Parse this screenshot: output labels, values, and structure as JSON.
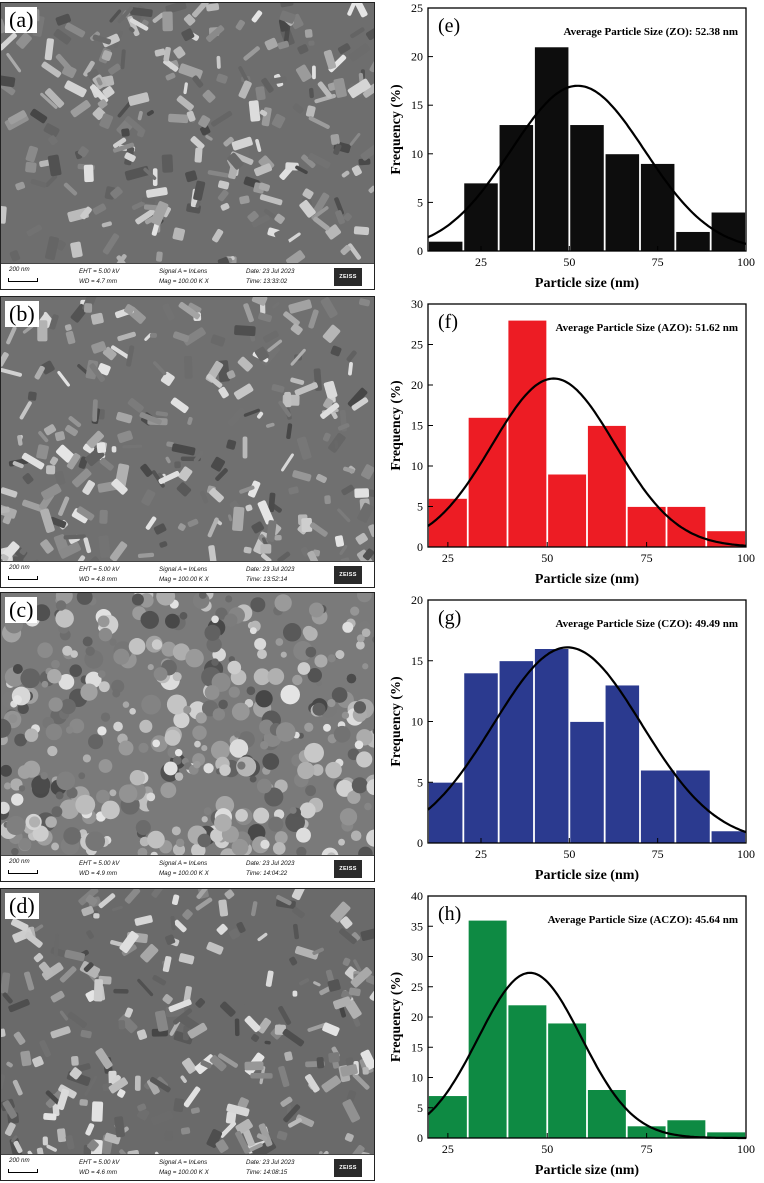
{
  "panels": [
    {
      "label": "(a)",
      "scale": "200 nm",
      "eht": "EHT =  5.00 kV",
      "wd": "WD =  4.7 mm",
      "signal": "Signal A = InLens",
      "mag": "Mag =  100.00 K X",
      "date": "Date: 23 Jul 2023",
      "time": "Time: 13:33:02",
      "logo": "ZEISS"
    },
    {
      "label": "(b)",
      "scale": "200 nm",
      "eht": "EHT =  5.00 kV",
      "wd": "WD =  4.8 mm",
      "signal": "Signal A = InLens",
      "mag": "Mag =  100.00 K X",
      "date": "Date: 23 Jul 2023",
      "time": "Time: 13:52:14",
      "logo": "ZEISS"
    },
    {
      "label": "(c)",
      "scale": "200 nm",
      "eht": "EHT =  5.00 kV",
      "wd": "WD =  4.9 mm",
      "signal": "Signal A = InLens",
      "mag": "Mag =  100.00 K X",
      "date": "Date: 23 Jul 2023",
      "time": "Time: 14:04:22",
      "logo": "ZEISS"
    },
    {
      "label": "(d)",
      "scale": "200 nm",
      "eht": "EHT =  5.00 kV",
      "wd": "WD =  4.6 mm",
      "signal": "Signal A = InLens",
      "mag": "Mag =  100.00 K X",
      "date": "Date: 23 Jul 2023",
      "time": "Time: 14:08:15",
      "logo": "ZEISS"
    }
  ],
  "chart_data": [
    {
      "type": "bar",
      "panel_label": "(e)",
      "annotation": "Average Particle Size (ZO): 52.38 nm",
      "xlabel": "Particle size (nm)",
      "ylabel": "Frequency (%)",
      "xlim": [
        10,
        100
      ],
      "ylim": [
        0,
        25
      ],
      "xticks": [
        25,
        50,
        75,
        100
      ],
      "yticks": [
        0,
        5,
        10,
        15,
        20,
        25
      ],
      "bar_color": "#0d0d0d",
      "bin_edges": [
        10,
        20,
        30,
        40,
        50,
        60,
        70,
        80,
        90,
        100
      ],
      "values": [
        1,
        7,
        13,
        21,
        13,
        10,
        9,
        2,
        4
      ],
      "fit": {
        "type": "gaussian",
        "mean": 52.38,
        "sigma": 19,
        "peak": 17
      }
    },
    {
      "type": "bar",
      "panel_label": "(f)",
      "annotation": "Average Particle Size (AZO): 51.62 nm",
      "xlabel": "Particle size (nm)",
      "ylabel": "Frequency (%)",
      "xlim": [
        20,
        100
      ],
      "ylim": [
        0,
        30
      ],
      "xticks": [
        25,
        50,
        75,
        100
      ],
      "yticks": [
        0,
        5,
        10,
        15,
        20,
        25,
        30
      ],
      "bar_color": "#ed1c24",
      "bin_edges": [
        20,
        30,
        40,
        50,
        60,
        70,
        80,
        90,
        100
      ],
      "values": [
        6,
        16,
        28,
        9,
        15,
        5,
        5,
        2
      ],
      "fit": {
        "type": "gaussian",
        "mean": 51.62,
        "sigma": 15.5,
        "peak": 20.8
      }
    },
    {
      "type": "bar",
      "panel_label": "(g)",
      "annotation": "Average Particle Size (CZO): 49.49 nm",
      "xlabel": "Particle size (nm)",
      "ylabel": "Frequency (%)",
      "xlim": [
        10,
        100
      ],
      "ylim": [
        0,
        20
      ],
      "xticks": [
        25,
        50,
        75,
        100
      ],
      "yticks": [
        0,
        5,
        10,
        15,
        20
      ],
      "bar_color": "#2b3a8f",
      "bin_edges": [
        10,
        20,
        30,
        40,
        50,
        60,
        70,
        80,
        90,
        100
      ],
      "values": [
        5,
        14,
        15,
        16,
        10,
        13,
        6,
        6,
        1
      ],
      "fit": {
        "type": "gaussian",
        "mean": 49.49,
        "sigma": 21,
        "peak": 16.1
      }
    },
    {
      "type": "bar",
      "panel_label": "(h)",
      "annotation": "Average Particle Size (ACZO): 45.64 nm",
      "xlabel": "Particle size (nm)",
      "ylabel": "Frequency (%)",
      "xlim": [
        20,
        100
      ],
      "ylim": [
        0,
        40
      ],
      "xticks": [
        25,
        50,
        75,
        100
      ],
      "yticks": [
        0,
        5,
        10,
        15,
        20,
        25,
        30,
        35,
        40
      ],
      "bar_color": "#0e8a43",
      "bin_edges": [
        20,
        30,
        40,
        50,
        60,
        70,
        80,
        90,
        100
      ],
      "values": [
        7,
        36,
        22,
        19,
        8,
        2,
        3,
        1
      ],
      "fit": {
        "type": "gaussian",
        "mean": 45.64,
        "sigma": 13,
        "peak": 27.3
      }
    }
  ]
}
